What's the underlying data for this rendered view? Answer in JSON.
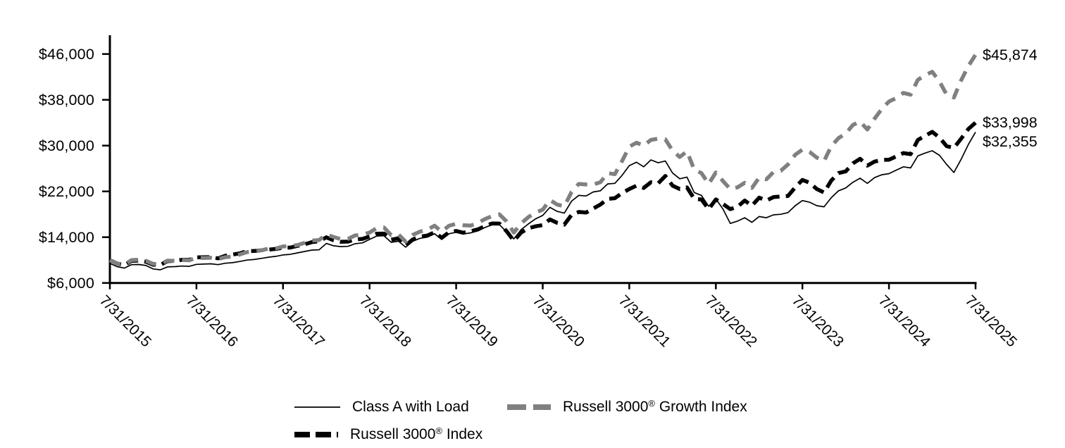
{
  "chart_data": {
    "type": "line",
    "title": "",
    "x_start": "7/31/2015",
    "x_end": "7/31/2025",
    "x_frequency": "monthly",
    "x_ticks": [
      "7/31/2015",
      "7/31/2016",
      "7/31/2017",
      "7/31/2018",
      "7/31/2019",
      "7/31/2020",
      "7/31/2021",
      "7/31/2022",
      "7/31/2023",
      "7/31/2024",
      "7/31/2025"
    ],
    "y_ticks": [
      "$46,000",
      "$38,000",
      "$30,000",
      "$22,000",
      "$14,000",
      "$6,000"
    ],
    "y_tick_values": [
      46000,
      38000,
      30000,
      22000,
      14000,
      6000
    ],
    "ylim": [
      6000,
      46000
    ],
    "grid": false,
    "legend_position": "bottom",
    "series": [
      {
        "name": "Class A with Load",
        "color": "#000000",
        "dash": "solid",
        "dash_pattern": "none",
        "width": 1.7,
        "end_label": "$32,355",
        "final_value": 32355,
        "values": [
          9425,
          8850,
          8600,
          9200,
          9230,
          9050,
          8450,
          8300,
          8800,
          8850,
          8950,
          8900,
          9250,
          9300,
          9350,
          9200,
          9450,
          9550,
          9750,
          10000,
          10100,
          10300,
          10500,
          10650,
          10900,
          11000,
          11250,
          11500,
          11750,
          11800,
          12900,
          12500,
          12350,
          12400,
          12850,
          13000,
          13600,
          14200,
          14250,
          13100,
          13300,
          12250,
          13300,
          13800,
          14000,
          14600,
          13600,
          14600,
          14850,
          14550,
          14750,
          15100,
          15700,
          16200,
          16200,
          14900,
          13700,
          15300,
          16300,
          17200,
          17800,
          19200,
          18500,
          18200,
          20300,
          21300,
          21200,
          21900,
          22100,
          23300,
          23400,
          24800,
          26500,
          27100,
          26300,
          27500,
          27000,
          27300,
          25200,
          24200,
          24500,
          21800,
          21300,
          19400,
          20700,
          18900,
          16400,
          16800,
          17400,
          16600,
          17600,
          17400,
          17900,
          18000,
          18300,
          19500,
          20400,
          20100,
          19500,
          19300,
          20900,
          22100,
          22600,
          23600,
          24300,
          23400,
          24400,
          24900,
          25100,
          25700,
          26300,
          26100,
          28200,
          28700,
          29100,
          28300,
          26700,
          25300,
          27600,
          30200,
          32355
        ]
      },
      {
        "name": "Russell 3000® Index",
        "color": "#000000",
        "dash": "dashed",
        "dash_pattern": "17 9",
        "width": 5.5,
        "end_label": "$33,998",
        "final_value": 33998,
        "values": [
          10000,
          9400,
          9130,
          9850,
          9910,
          9710,
          9170,
          9160,
          9810,
          9870,
          10050,
          10070,
          10470,
          10500,
          10520,
          10290,
          10750,
          10960,
          11170,
          11580,
          11590,
          11710,
          11830,
          11940,
          12160,
          12180,
          12480,
          12750,
          13140,
          13270,
          13980,
          13460,
          13190,
          13230,
          13610,
          13700,
          14110,
          14610,
          14630,
          13550,
          13810,
          12530,
          13600,
          14080,
          14280,
          14850,
          13890,
          14860,
          15080,
          14770,
          15030,
          15350,
          15940,
          16400,
          16380,
          15040,
          13350,
          14800,
          15550,
          15900,
          16100,
          17100,
          16500,
          16200,
          17900,
          18400,
          18300,
          19000,
          19700,
          20700,
          20800,
          21700,
          22400,
          23000,
          22600,
          23600,
          23400,
          24700,
          23000,
          22400,
          22700,
          20700,
          20600,
          18900,
          20600,
          19800,
          18900,
          19300,
          20400,
          19500,
          20900,
          20400,
          21000,
          21100,
          21200,
          22700,
          24000,
          23500,
          22400,
          21800,
          23900,
          25200,
          25500,
          26900,
          27700,
          26500,
          27200,
          27500,
          27540,
          28100,
          28700,
          28500,
          31000,
          31700,
          32400,
          31400,
          29900,
          29600,
          31200,
          32900,
          33998
        ]
      },
      {
        "name": "Russell 3000® Growth Index",
        "color": "#808080",
        "dash": "dashed",
        "dash_pattern": "16 11",
        "width": 5.5,
        "end_label": "$45,874",
        "final_value": 45874,
        "values": [
          10000,
          9420,
          9170,
          10000,
          10060,
          9890,
          9330,
          9290,
          9900,
          9860,
          10010,
          9960,
          10400,
          10370,
          10410,
          10190,
          10500,
          10630,
          10970,
          11390,
          11500,
          11700,
          12000,
          12040,
          12370,
          12460,
          12620,
          13010,
          13400,
          13500,
          14470,
          14050,
          13660,
          13700,
          14310,
          14440,
          14800,
          15600,
          15690,
          14350,
          14490,
          13210,
          14400,
          14990,
          15290,
          16000,
          14960,
          15990,
          16340,
          16080,
          16020,
          16470,
          17180,
          17690,
          17990,
          16750,
          14800,
          16400,
          17500,
          18300,
          18800,
          20500,
          19700,
          19400,
          21900,
          23300,
          23200,
          23200,
          23600,
          25200,
          25000,
          27300,
          29800,
          30500,
          30000,
          31000,
          31200,
          31100,
          29100,
          28000,
          29000,
          25800,
          25200,
          23300,
          25300,
          23800,
          22400,
          22700,
          23500,
          22600,
          24400,
          24100,
          25400,
          25600,
          26700,
          28400,
          29300,
          28900,
          27900,
          27300,
          29900,
          31300,
          32100,
          33600,
          34200,
          32800,
          34700,
          36400,
          37700,
          38300,
          39200,
          38900,
          41500,
          42300,
          42900,
          41200,
          38900,
          38400,
          41400,
          43900,
          45874
        ]
      }
    ]
  },
  "legend": {
    "items": [
      {
        "prefix": "Class A with Load",
        "reg": "",
        "suffix": ""
      },
      {
        "prefix": "Russell 3000",
        "reg": "®",
        "suffix": " Index"
      },
      {
        "prefix": "Russell 3000",
        "reg": "®",
        "suffix": " Growth Index"
      }
    ]
  }
}
